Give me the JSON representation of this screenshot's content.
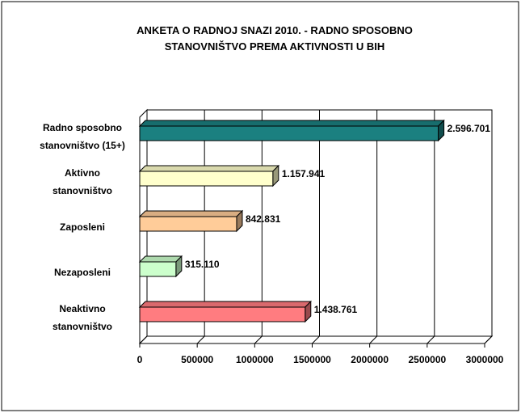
{
  "chart_data": {
    "type": "bar3d_horizontal",
    "title": [
      "ANKETA O RADNOJ SNAZI 2010. - RADNO SPOSOBNO",
      "STANOVNIŠTVO PREMA AKTIVNOSTI U BIH"
    ],
    "categories": [
      "Radno sposobno\nstanovništvo (15+)",
      "Aktivno\nstanovništvo",
      "Zaposleni",
      "Nezaposleni",
      "Neaktivno\nstanovništvo"
    ],
    "values": [
      2596701,
      1157941,
      842831,
      315110,
      1438761
    ],
    "value_labels": [
      "2.596.701",
      "1.157.941",
      "842.831",
      "315.110",
      "1.438.761"
    ],
    "colors": [
      "#1b8080",
      "#ffffcc",
      "#ffcc99",
      "#ccffcc",
      "#ff7c80"
    ],
    "xlim": [
      0,
      3000000
    ],
    "xticks": [
      0,
      500000,
      1000000,
      1500000,
      2000000,
      2500000,
      3000000
    ],
    "grid": true
  }
}
